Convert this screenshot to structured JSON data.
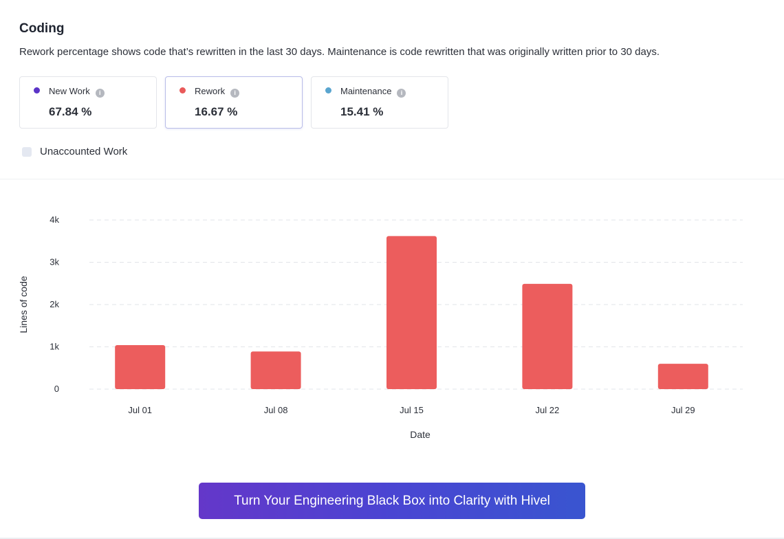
{
  "section": {
    "title": "Coding",
    "description": "Rework percentage shows code that’s rewritten in the last 30 days. Maintenance is code rewritten that was originally written prior to 30 days."
  },
  "cards": [
    {
      "label": "New Work",
      "value": "67.84 %",
      "color": "#5b34c7",
      "selected": false
    },
    {
      "label": "Rework",
      "value": "16.67 %",
      "color": "#e95a5a",
      "selected": true
    },
    {
      "label": "Maintenance",
      "value": "15.41 %",
      "color": "#5aa5cf",
      "selected": false
    }
  ],
  "unaccounted": {
    "label": "Unaccounted Work"
  },
  "info_icon_glyph": "i",
  "chart_data": {
    "type": "bar",
    "title": "",
    "xlabel": "Date",
    "ylabel": "Lines of code",
    "categories": [
      "Jul 01",
      "Jul 08",
      "Jul 15",
      "Jul 22",
      "Jul 29"
    ],
    "series": [
      {
        "name": "Rework",
        "color": "#ec5d5d",
        "values": [
          1040,
          890,
          3620,
          2490,
          600
        ]
      }
    ],
    "ylim": [
      0,
      4000
    ],
    "yticks": [
      0,
      1000,
      2000,
      3000,
      4000
    ],
    "ytick_labels": [
      "0",
      "1k",
      "2k",
      "3k",
      "4k"
    ],
    "grid": true
  },
  "cta": {
    "label": "Turn Your Engineering Black Box into Clarity with Hivel"
  }
}
